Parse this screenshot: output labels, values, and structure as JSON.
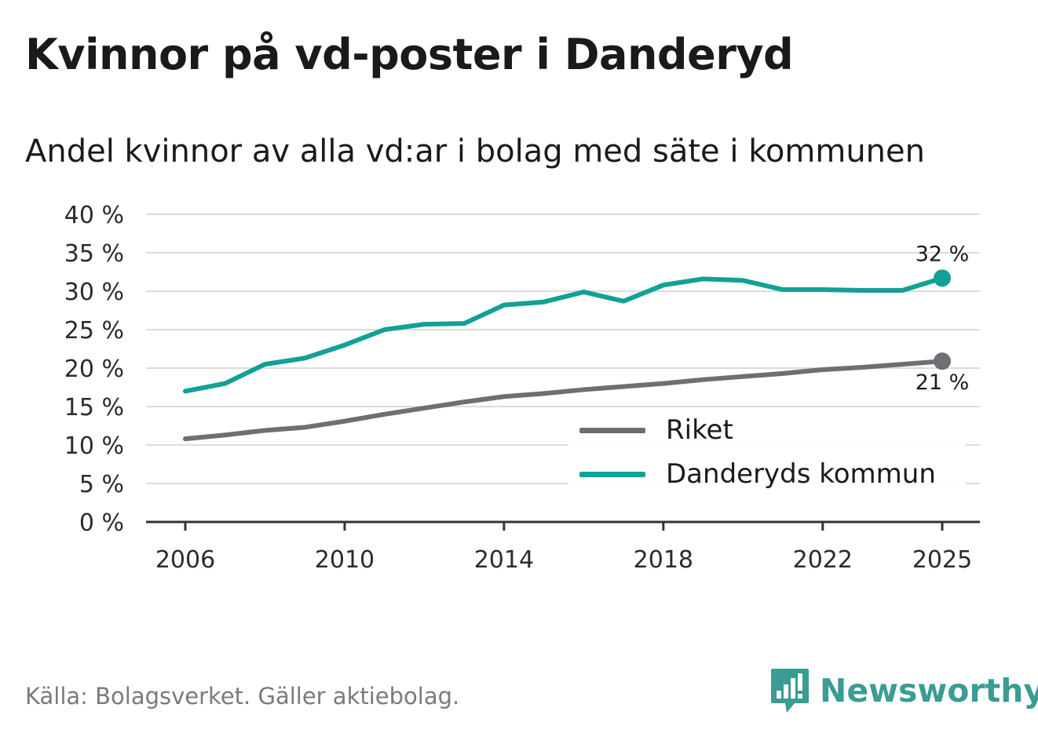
{
  "title": "Kvinnor på vd-poster i Danderyd",
  "subtitle": "Andel kvinnor av alla vd:ar i bolag med säte i kommunen",
  "source": "Källa: Bolagsverket. Gäller aktiebolag.",
  "brand": {
    "name": "Newsworthy",
    "icon": "newsworthy-logo-icon",
    "color": "#3a9c93"
  },
  "chart_data": {
    "type": "line",
    "title": "Kvinnor på vd-poster i Danderyd",
    "subtitle": "Andel kvinnor av alla vd:ar i bolag med säte i kommunen",
    "xlabel": "",
    "ylabel": "",
    "x": [
      2006,
      2007,
      2008,
      2009,
      2010,
      2011,
      2012,
      2013,
      2014,
      2015,
      2016,
      2017,
      2018,
      2019,
      2020,
      2021,
      2022,
      2023,
      2024,
      2025
    ],
    "x_ticks": [
      "2006",
      "2010",
      "2014",
      "2018",
      "2022",
      "2025"
    ],
    "y_ticks": [
      "0 %",
      "5 %",
      "10 %",
      "15 %",
      "20 %",
      "25 %",
      "30 %",
      "35 %",
      "40 %"
    ],
    "ylim": [
      0,
      40
    ],
    "grid": true,
    "legend_position": "bottom-right",
    "series": [
      {
        "name": "Riket",
        "color": "#6e6e73",
        "values": [
          10.8,
          11.3,
          11.9,
          12.3,
          13.1,
          14.0,
          14.8,
          15.6,
          16.3,
          16.7,
          17.2,
          17.6,
          18.0,
          18.5,
          18.9,
          19.3,
          19.8,
          20.1,
          20.5,
          20.9
        ],
        "end_label": "21 %"
      },
      {
        "name": "Danderyds kommun",
        "color": "#13a096",
        "values": [
          17.0,
          18.0,
          20.5,
          21.3,
          23.0,
          25.0,
          25.7,
          25.8,
          28.2,
          28.6,
          29.9,
          28.7,
          30.8,
          31.6,
          31.4,
          30.2,
          30.2,
          30.1,
          30.1,
          31.7
        ],
        "end_label": "32 %"
      }
    ]
  }
}
